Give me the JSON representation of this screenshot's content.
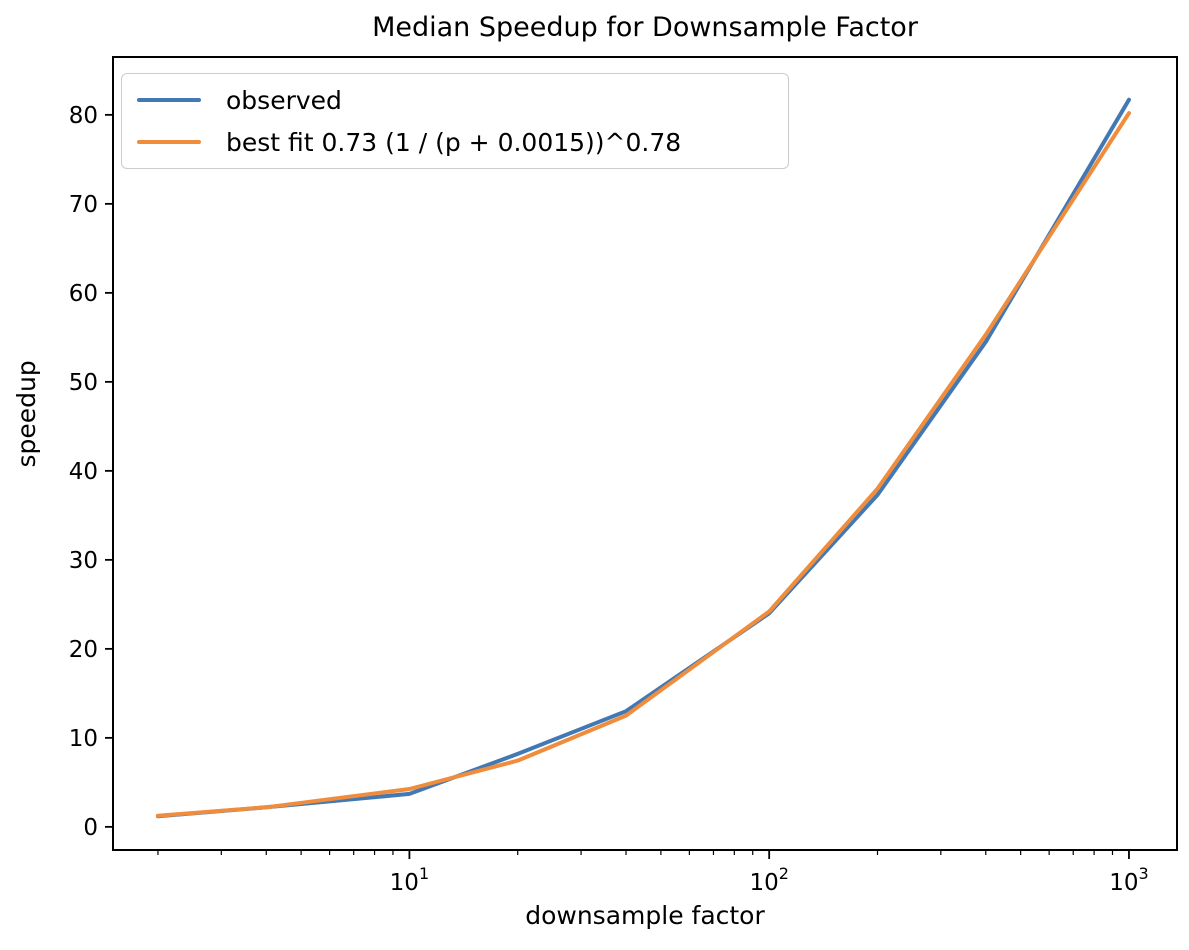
{
  "figure": {
    "title": "Median Speedup for Downsample Factor",
    "xlabel": "downsample factor",
    "ylabel": "speedup",
    "background_color": "#ffffff",
    "spine_color": "#000000",
    "legend_border_color": "#cccccc"
  },
  "chart_data": {
    "type": "line",
    "title": "Median Speedup for Downsample Factor",
    "xlabel": "downsample factor",
    "ylabel": "speedup",
    "x_scale": "log",
    "y_scale": "linear",
    "xlim": [
      1.5,
      1360
    ],
    "ylim": [
      -2.6,
      86.5
    ],
    "grid": false,
    "legend_position": "upper left",
    "x_major_ticks": [
      {
        "value": 10,
        "label_base": "10",
        "label_exp": "1"
      },
      {
        "value": 100,
        "label_base": "10",
        "label_exp": "2"
      },
      {
        "value": 1000,
        "label_base": "10",
        "label_exp": "3"
      }
    ],
    "y_ticks": [
      0,
      10,
      20,
      30,
      40,
      50,
      60,
      70,
      80
    ],
    "series": [
      {
        "name": "observed",
        "color": "#4279b4",
        "x": [
          2,
          4,
          10,
          20,
          40,
          100,
          200,
          400,
          1000
        ],
        "y": [
          1.2,
          2.2,
          3.7,
          8.2,
          13.0,
          24.0,
          37.3,
          54.5,
          81.7
        ]
      },
      {
        "name": "best fit 0.73 (1 / (p + 0.0015))^0.78",
        "color": "#ef8d3d",
        "x": [
          2,
          4,
          10,
          20,
          40,
          100,
          200,
          400,
          1000
        ],
        "y": [
          1.25,
          2.2,
          4.25,
          7.45,
          12.5,
          24.2,
          38.0,
          55.3,
          80.2
        ]
      }
    ]
  }
}
